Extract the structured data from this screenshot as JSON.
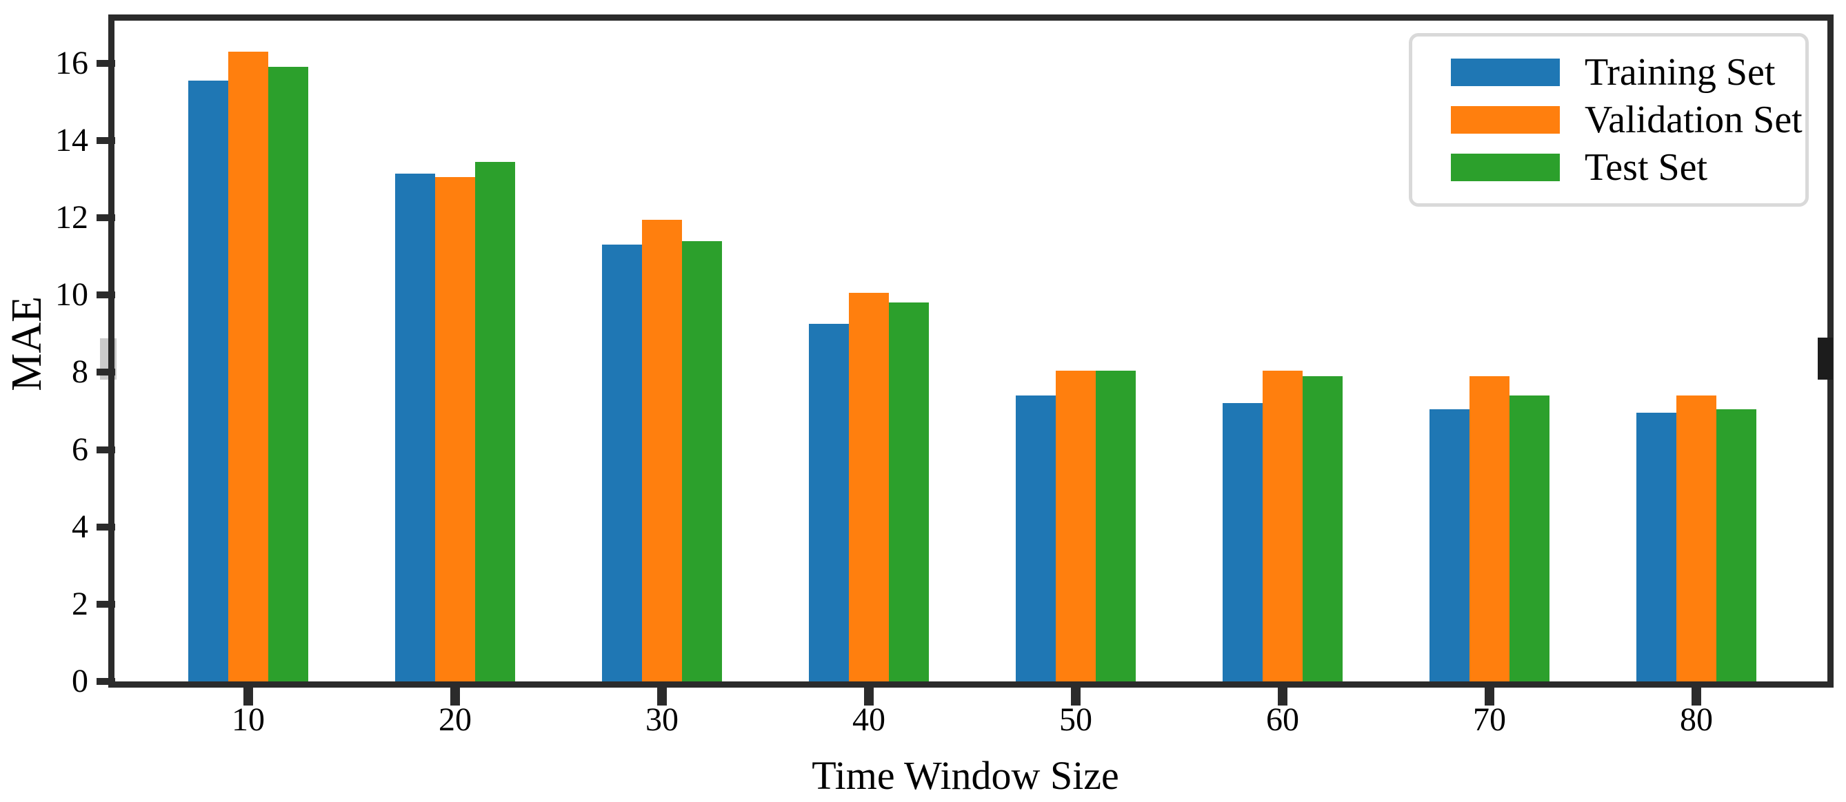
{
  "chart_data": {
    "type": "bar",
    "title": "",
    "xlabel": "Time Window Size",
    "ylabel": "MAE",
    "categories": [
      "10",
      "20",
      "30",
      "40",
      "50",
      "60",
      "70",
      "80"
    ],
    "series": [
      {
        "name": "Training Set",
        "color": "#1f77b4",
        "values": [
          15.55,
          13.15,
          11.3,
          9.25,
          7.4,
          7.2,
          7.05,
          6.95
        ]
      },
      {
        "name": "Validation Set",
        "color": "#ff7f0e",
        "values": [
          16.3,
          13.05,
          11.95,
          10.05,
          8.05,
          8.05,
          7.9,
          7.4
        ]
      },
      {
        "name": "Test Set",
        "color": "#2ca02c",
        "values": [
          15.9,
          13.45,
          11.4,
          9.8,
          8.05,
          7.9,
          7.4,
          7.05
        ]
      }
    ],
    "yticks": [
      0,
      2,
      4,
      6,
      8,
      10,
      12,
      14,
      16
    ],
    "ylim": [
      0,
      17.1
    ],
    "grid": false,
    "legend_position": "upper right",
    "axis_color": "#2b2b2b",
    "legend_border_color": "#d9d9d9"
  }
}
